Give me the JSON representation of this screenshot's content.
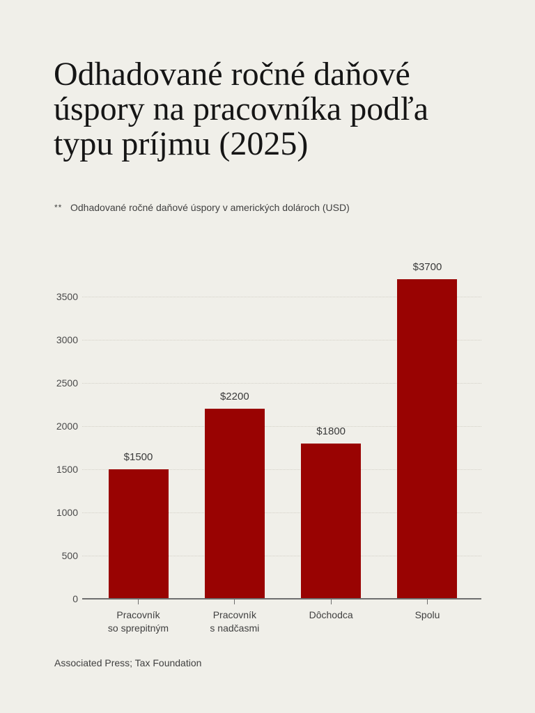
{
  "title": "Odhadované ročné daňové úspory na pracovníka podľa typu príjmu (2025)",
  "footnote": {
    "marker": "**",
    "text": "Odhadované ročné daňové úspory v amerických dolároch (USD)"
  },
  "source": "Associated Press; Tax Foundation",
  "colors": {
    "background": "#f0efe9",
    "bar": "#990302",
    "axis": "#6e6e6e",
    "gridline": "#d3d0c7",
    "title_text": "#151515",
    "muted_text": "#3f3f3f"
  },
  "chart_data": {
    "type": "bar",
    "title": "Odhadované ročné daňové úspory na pracovníka podľa typu príjmu (2025)",
    "xlabel": "",
    "ylabel": "",
    "categories": [
      "Pracovník so sprepitným",
      "Pracovník s nadčasmi",
      "Dôchodca",
      "Spolu"
    ],
    "category_label_lines": [
      [
        "Pracovník",
        "so sprepitným"
      ],
      [
        "Pracovník",
        "s nadčasmi"
      ],
      [
        "Dôchodca"
      ],
      [
        "Spolu"
      ]
    ],
    "values": [
      1500,
      2200,
      1800,
      3700
    ],
    "value_labels": [
      "$1500",
      "$2200",
      "$1800",
      "$3700"
    ],
    "yticks": [
      0,
      500,
      1000,
      1500,
      2000,
      2500,
      3000,
      3500
    ],
    "ylim": [
      0,
      3900
    ],
    "grid": "horizontal-dotted",
    "legend": "none",
    "bar_color": "#990302",
    "currency": "USD"
  }
}
